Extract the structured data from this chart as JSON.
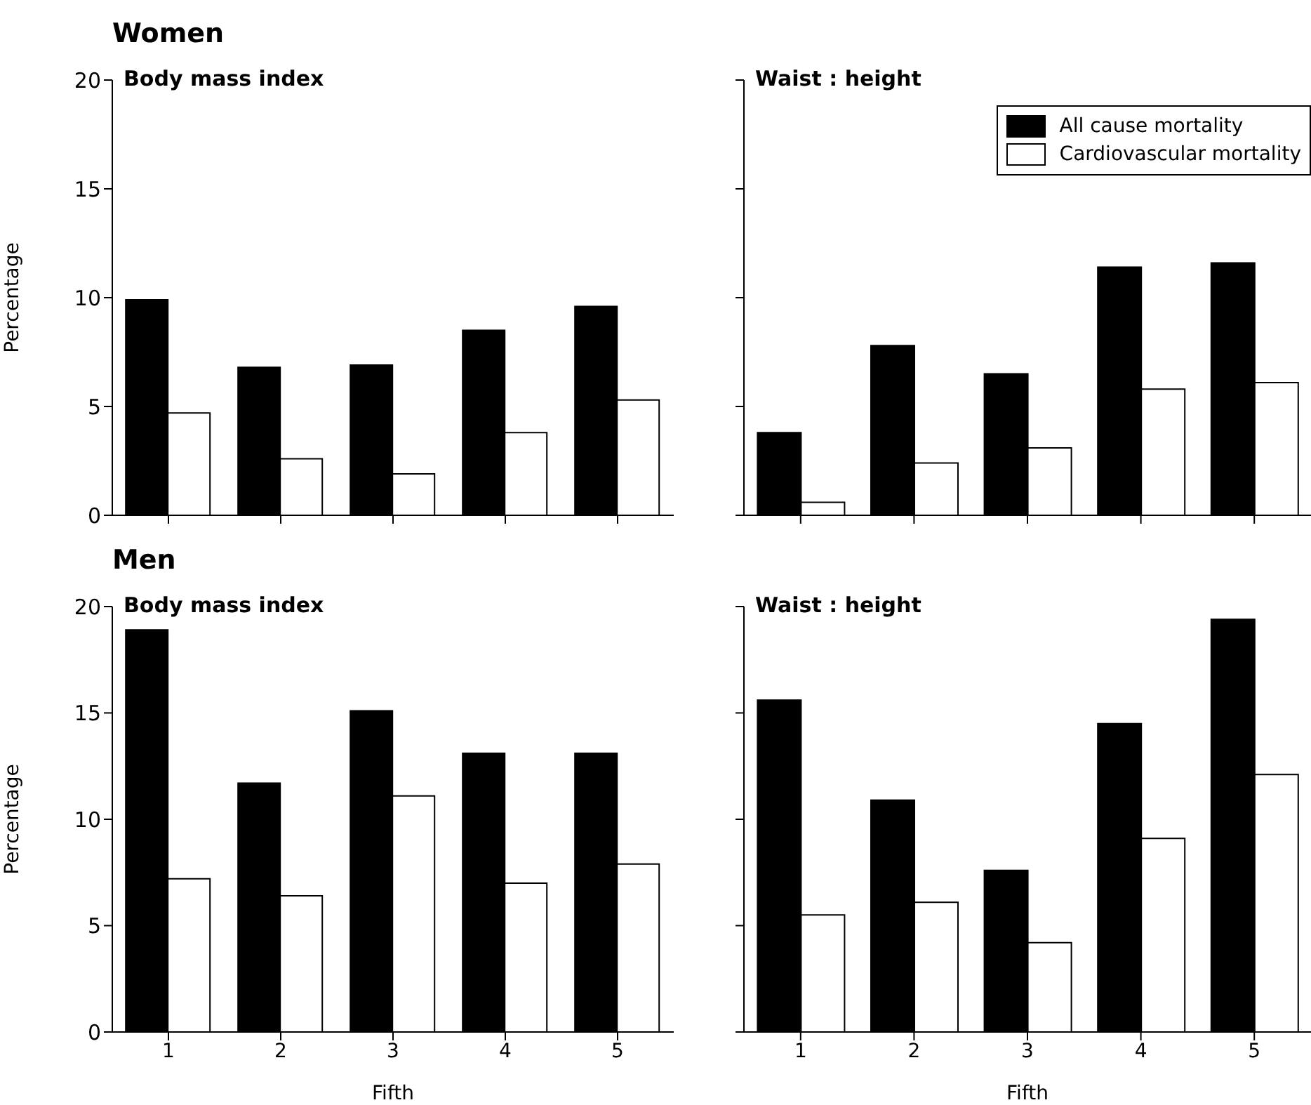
{
  "chart_data": [
    {
      "type": "bar",
      "title": "Women",
      "subtitle": "Body mass index",
      "ylabel": "Percentage",
      "categories": [
        "1",
        "2",
        "3",
        "4",
        "5"
      ],
      "series": [
        {
          "color": "#000000",
          "values": [
            9.9,
            6.8,
            6.9,
            8.5,
            9.6
          ]
        },
        {
          "color": "#ffffff",
          "values": [
            4.7,
            2.6,
            1.9,
            3.8,
            5.3
          ]
        }
      ],
      "ylim": [
        0,
        20
      ],
      "yticks": [
        0,
        5,
        10,
        15,
        20
      ],
      "tick_labels": "y",
      "grid": false,
      "legend": false
    },
    {
      "type": "bar",
      "subtitle": "Waist : height",
      "categories": [
        "1",
        "2",
        "3",
        "4",
        "5"
      ],
      "series": [
        {
          "name": "All cause mortality",
          "color": "#000000",
          "values": [
            3.8,
            7.8,
            6.5,
            11.4,
            11.6
          ]
        },
        {
          "name": "Cardiovascular mortality",
          "color": "#ffffff",
          "values": [
            0.6,
            2.4,
            3.1,
            5.8,
            6.1
          ]
        }
      ],
      "ylim": [
        0,
        20
      ],
      "yticks": [
        0,
        5,
        10,
        15,
        20
      ],
      "tick_labels": false,
      "grid": false,
      "legend": "top right"
    },
    {
      "type": "bar",
      "title": "Men",
      "subtitle": "Body mass index",
      "xlabel": "Fifth",
      "ylabel": "Percentage",
      "categories": [
        "1",
        "2",
        "3",
        "4",
        "5"
      ],
      "series": [
        {
          "color": "#000000",
          "values": [
            18.9,
            11.7,
            15.1,
            13.1,
            13.1
          ]
        },
        {
          "color": "#ffffff",
          "values": [
            7.2,
            6.4,
            11.1,
            7.0,
            7.9
          ]
        }
      ],
      "ylim": [
        0,
        20
      ],
      "yticks": [
        0,
        5,
        10,
        15,
        20
      ],
      "grid": false,
      "legend": false
    },
    {
      "type": "bar",
      "subtitle": "Waist : height",
      "xlabel": "Fifth",
      "categories": [
        "1",
        "2",
        "3",
        "4",
        "5"
      ],
      "series": [
        {
          "color": "#000000",
          "values": [
            15.6,
            10.9,
            7.6,
            14.5,
            19.4
          ]
        },
        {
          "color": "#ffffff",
          "values": [
            5.5,
            6.1,
            4.2,
            9.1,
            12.1
          ]
        }
      ],
      "ylim": [
        0,
        20
      ],
      "yticks": [
        0,
        5,
        10,
        15,
        20
      ],
      "tick_labels": "x",
      "grid": false,
      "legend": false
    }
  ]
}
